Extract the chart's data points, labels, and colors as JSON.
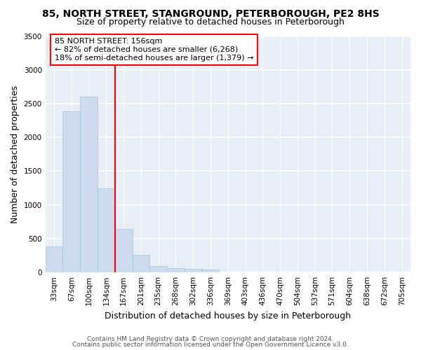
{
  "title_line1": "85, NORTH STREET, STANGROUND, PETERBOROUGH, PE2 8HS",
  "title_line2": "Size of property relative to detached houses in Peterborough",
  "xlabel": "Distribution of detached houses by size in Peterborough",
  "ylabel": "Number of detached properties",
  "bar_color": "#ccdcee",
  "bar_edge_color": "#a8c4dc",
  "background_color": "#e8eef8",
  "grid_color": "#ffffff",
  "categories": [
    "33sqm",
    "67sqm",
    "100sqm",
    "134sqm",
    "167sqm",
    "201sqm",
    "235sqm",
    "268sqm",
    "302sqm",
    "336sqm",
    "369sqm",
    "403sqm",
    "436sqm",
    "470sqm",
    "504sqm",
    "537sqm",
    "571sqm",
    "604sqm",
    "638sqm",
    "672sqm",
    "705sqm"
  ],
  "values": [
    390,
    2390,
    2600,
    1250,
    640,
    260,
    100,
    60,
    55,
    40,
    0,
    0,
    0,
    0,
    0,
    0,
    0,
    0,
    0,
    0,
    0
  ],
  "ylim": [
    0,
    3500
  ],
  "yticks": [
    0,
    500,
    1000,
    1500,
    2000,
    2500,
    3000,
    3500
  ],
  "red_line_x": 4,
  "annotation_text_line1": "85 NORTH STREET: 156sqm",
  "annotation_text_line2": "← 82% of detached houses are smaller (6,268)",
  "annotation_text_line3": "18% of semi-detached houses are larger (1,379) →",
  "footer_line1": "Contains HM Land Registry data © Crown copyright and database right 2024.",
  "footer_line2": "Contains public sector information licensed under the Open Government Licence v3.0.",
  "title_fontsize": 10,
  "subtitle_fontsize": 9,
  "axis_label_fontsize": 9,
  "tick_fontsize": 7.5,
  "annotation_fontsize": 8,
  "footer_fontsize": 6.5
}
